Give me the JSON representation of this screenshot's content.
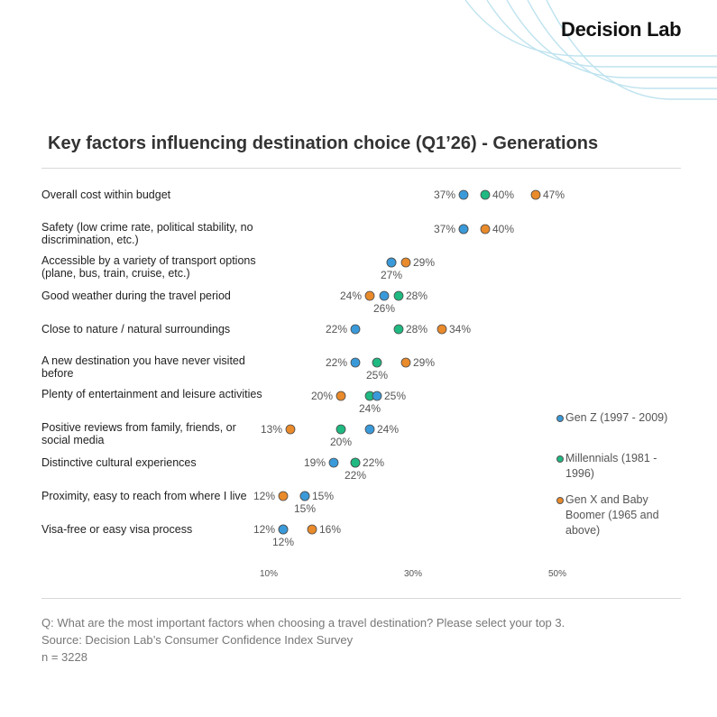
{
  "brand": "Decision Lab",
  "title": "Key factors influencing destination choice (Q1’26) - Generations",
  "footnotes": {
    "question": "Q: What are the most important factors when choosing a travel destination? Please select your top 3.",
    "source": "Source: Decision Lab’s Consumer Confidence Index Survey",
    "n": "n = 3228"
  },
  "colors": {
    "genz": "#3a9ad9",
    "millennials": "#1fb981",
    "genx": "#e98a2b",
    "accent_lines": "#bfe3ef"
  },
  "chart_data": {
    "type": "scatter",
    "title": "Key factors influencing destination choice (Q1’26) - Generations",
    "categories": [
      "Overall cost within budget",
      "Safety (low crime rate, political stability, no discrimination, etc.)",
      "Accessible by a variety of transport options (plane, bus, train, cruise, etc.)",
      "Good weather during the travel period",
      "Close to nature / natural surroundings",
      "A new destination you have never visited before",
      "Plenty of entertainment and leisure activities",
      "Positive reviews from family, friends, or social media",
      "Distinctive cultural experiences",
      "Proximity, easy to reach from where I live",
      "Visa-free or easy visa process"
    ],
    "series": [
      {
        "name": "Gen Z (1997 - 2009)",
        "color": "#3a9ad9",
        "values": [
          37,
          37,
          27,
          26,
          22,
          22,
          25,
          24,
          19,
          15,
          12
        ],
        "labels": [
          "37%",
          "37%",
          "",
          "26%",
          "22%",
          "22%",
          "25%",
          "24%",
          "19%",
          "15%",
          "12%"
        ]
      },
      {
        "name": "Millennials (1981 - 1996)",
        "color": "#1fb981",
        "values": [
          40,
          37,
          27,
          28,
          28,
          25,
          24,
          20,
          22,
          15,
          12
        ],
        "labels": [
          "40%",
          "",
          "27%",
          "28%",
          "28%",
          "25%",
          "24%",
          "20%",
          "22%",
          "15%",
          "12%"
        ]
      },
      {
        "name": "Gen X and Baby Boomer (1965 and above)",
        "color": "#e98a2b",
        "values": [
          47,
          40,
          29,
          24,
          34,
          29,
          20,
          13,
          22,
          12,
          16
        ],
        "labels": [
          "47%",
          "40%",
          "29%",
          "24%",
          "34%",
          "29%",
          "20%",
          "13%",
          "22%",
          "12%",
          "16%"
        ]
      }
    ],
    "xticks": [
      "10%",
      "30%",
      "50%"
    ],
    "xlim": [
      10,
      50
    ],
    "legend": "right"
  }
}
